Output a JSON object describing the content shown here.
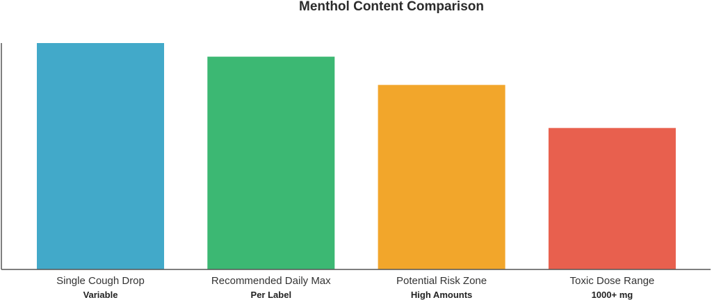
{
  "chart_data": {
    "type": "bar",
    "title": "Menthol Content Comparison",
    "xlabel": "",
    "ylabel": "",
    "categories": [
      "Single Cough Drop",
      "Recommended Daily Max",
      "Potential Risk Zone",
      "Toxic Dose Range"
    ],
    "sublabels": [
      "Variable",
      "Per Label",
      "High Amounts",
      "1000+ mg"
    ],
    "values": [
      100,
      94,
      81.5,
      62.5
    ],
    "colors": [
      "#42a9c9",
      "#3cb873",
      "#f2a62b",
      "#e8604e"
    ],
    "ylim": [
      0,
      100
    ],
    "grid": false,
    "legend": "none"
  }
}
